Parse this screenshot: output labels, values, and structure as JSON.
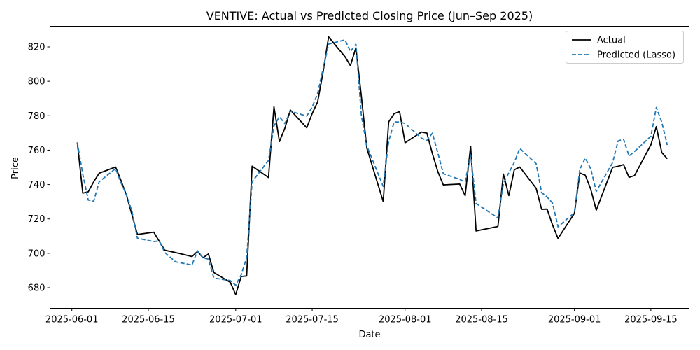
{
  "chart_data": {
    "type": "line",
    "title": "VENTIVE: Actual vs Predicted Closing Price (Jun–Sep 2025)",
    "xlabel": "Date",
    "ylabel": "Price",
    "xlim": [
      "2025-05-28",
      "2025-09-22"
    ],
    "ylim": [
      668,
      832
    ],
    "x_ticks": [
      "2025-06-01",
      "2025-06-15",
      "2025-07-01",
      "2025-07-15",
      "2025-08-01",
      "2025-08-15",
      "2025-09-01",
      "2025-09-15"
    ],
    "y_ticks": [
      680,
      700,
      720,
      740,
      760,
      780,
      800,
      820
    ],
    "grid": false,
    "legend_position": "top-right",
    "x": [
      "2025-06-02",
      "2025-06-03",
      "2025-06-04",
      "2025-06-05",
      "2025-06-06",
      "2025-06-09",
      "2025-06-10",
      "2025-06-11",
      "2025-06-12",
      "2025-06-13",
      "2025-06-16",
      "2025-06-17",
      "2025-06-18",
      "2025-06-20",
      "2025-06-23",
      "2025-06-24",
      "2025-06-25",
      "2025-06-26",
      "2025-06-27",
      "2025-06-30",
      "2025-07-01",
      "2025-07-02",
      "2025-07-03",
      "2025-07-04",
      "2025-07-07",
      "2025-07-08",
      "2025-07-09",
      "2025-07-10",
      "2025-07-11",
      "2025-07-14",
      "2025-07-15",
      "2025-07-16",
      "2025-07-17",
      "2025-07-18",
      "2025-07-21",
      "2025-07-22",
      "2025-07-23",
      "2025-07-24",
      "2025-07-25",
      "2025-07-28",
      "2025-07-29",
      "2025-07-30",
      "2025-07-31",
      "2025-08-01",
      "2025-08-04",
      "2025-08-05",
      "2025-08-06",
      "2025-08-07",
      "2025-08-08",
      "2025-08-11",
      "2025-08-12",
      "2025-08-13",
      "2025-08-14",
      "2025-08-18",
      "2025-08-19",
      "2025-08-20",
      "2025-08-21",
      "2025-08-22",
      "2025-08-25",
      "2025-08-26",
      "2025-08-27",
      "2025-08-28",
      "2025-08-29",
      "2025-09-01",
      "2025-09-02",
      "2025-09-03",
      "2025-09-04",
      "2025-09-05",
      "2025-09-08",
      "2025-09-09",
      "2025-09-10",
      "2025-09-11",
      "2025-09-12",
      "2025-09-15",
      "2025-09-16",
      "2025-09-17",
      "2025-09-18"
    ],
    "series": [
      {
        "name": "Actual",
        "color": "#000000",
        "style": "solid",
        "values": [
          764.5,
          735,
          735.8,
          741.6,
          746.6,
          750.2,
          742.3,
          733.8,
          722.5,
          711,
          712.3,
          707,
          701.8,
          700.4,
          698.1,
          701.1,
          697.4,
          699.6,
          688.8,
          683.1,
          676,
          686.5,
          686.8,
          750.7,
          744.1,
          785.2,
          765,
          772.8,
          783.3,
          773,
          781.3,
          788.1,
          805.5,
          825.8,
          814.3,
          809.1,
          819.5,
          791.3,
          761.2,
          730.1,
          776.4,
          781.2,
          782.4,
          764.3,
          770.5,
          769.9,
          758,
          747.5,
          739.8,
          740.3,
          733.5,
          762.3,
          713,
          715.6,
          746.1,
          733.6,
          748.6,
          750.2,
          737.8,
          725.6,
          725.7,
          716.5,
          708.7,
          723.3,
          746.7,
          745.4,
          737.2,
          725.1,
          750,
          750.6,
          751.6,
          744.2,
          745.2,
          763.1,
          773.7,
          758.6,
          755
        ]
      },
      {
        "name": "Predicted (Lasso)",
        "color": "#1f77b4",
        "style": "dashed",
        "values": [
          764.5,
          746,
          731,
          730.3,
          741.6,
          749.3,
          741,
          734,
          724.5,
          708.8,
          706.8,
          707.2,
          700.5,
          695,
          693.2,
          701.5,
          697.4,
          696.6,
          685.6,
          684.1,
          681.4,
          687.5,
          697.4,
          741.6,
          754,
          774.1,
          779.4,
          775.4,
          782.6,
          779.8,
          785.1,
          793,
          807.3,
          821.6,
          824.1,
          817.3,
          821.6,
          780.2,
          762.5,
          738.9,
          765.2,
          776.4,
          776.4,
          775.5,
          767,
          765.6,
          769.9,
          758.4,
          746.3,
          743,
          741.5,
          757.2,
          729,
          720.6,
          740.6,
          746.9,
          752.9,
          761,
          752.1,
          735.3,
          732.8,
          729.2,
          715.4,
          723.7,
          748.9,
          755.4,
          749.1,
          736,
          752.8,
          765.3,
          766.4,
          756.6,
          759.2,
          768.1,
          784.8,
          776.2,
          763
        ]
      }
    ]
  }
}
